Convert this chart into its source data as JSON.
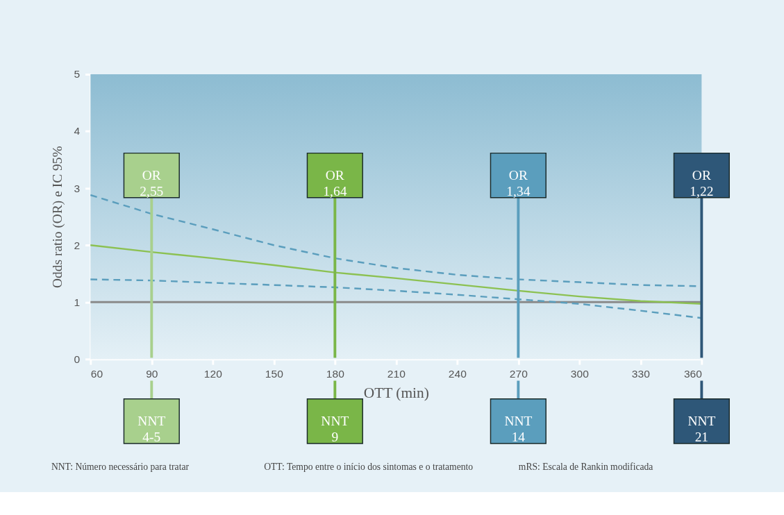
{
  "chart_data": {
    "type": "line",
    "xlabel": "OTT (min)",
    "ylabel": "Odds ratio (OR) e IC 95%",
    "x": [
      60,
      90,
      120,
      150,
      180,
      210,
      240,
      270,
      300,
      330,
      360
    ],
    "series": [
      {
        "color": "#8cc152",
        "line_style": "solid",
        "values": [
          2.0,
          1.88,
          1.77,
          1.65,
          1.52,
          1.42,
          1.31,
          1.2,
          1.1,
          1.02,
          0.97
        ]
      },
      {
        "color": "#5b9ebd",
        "line_style": "dashed",
        "values": [
          2.88,
          2.55,
          2.28,
          2.0,
          1.77,
          1.6,
          1.48,
          1.4,
          1.35,
          1.3,
          1.28
        ]
      },
      {
        "color": "#5b9ebd",
        "line_style": "dashed",
        "values": [
          1.4,
          1.38,
          1.34,
          1.3,
          1.26,
          1.2,
          1.13,
          1.05,
          0.97,
          0.85,
          0.72
        ]
      }
    ],
    "xlim": [
      60,
      360
    ],
    "xticks": [
      60,
      90,
      120,
      150,
      180,
      210,
      240,
      270,
      300,
      330,
      360
    ],
    "ylim": [
      0,
      5
    ],
    "yticks": [
      0,
      1,
      2,
      3,
      4,
      5
    ],
    "grid": false,
    "ref_lines": [
      {
        "axis": "y",
        "value": 1,
        "color": "#8a8a8a"
      },
      {
        "axis": "x",
        "value": 90,
        "label": "OR\n2,55",
        "color": "#a8d08d"
      },
      {
        "axis": "x",
        "value": 180,
        "label": "OR\n1,64",
        "color": "#7ab648"
      },
      {
        "axis": "x",
        "value": 270,
        "label": "OR\n1,34",
        "color": "#5b9ebd"
      },
      {
        "axis": "x",
        "value": 360,
        "label": "OR\n1,22",
        "color": "#2e5778"
      }
    ],
    "annotations": [
      "NNT\n4-5",
      "NNT\n9",
      "NNT\n14",
      "NNT\n21",
      "NNT: Número necessário para tratar",
      "OTT: Tempo entre o início dos sintomas e o tratamento",
      "mRS: Escala de Rankin modificada"
    ]
  }
}
